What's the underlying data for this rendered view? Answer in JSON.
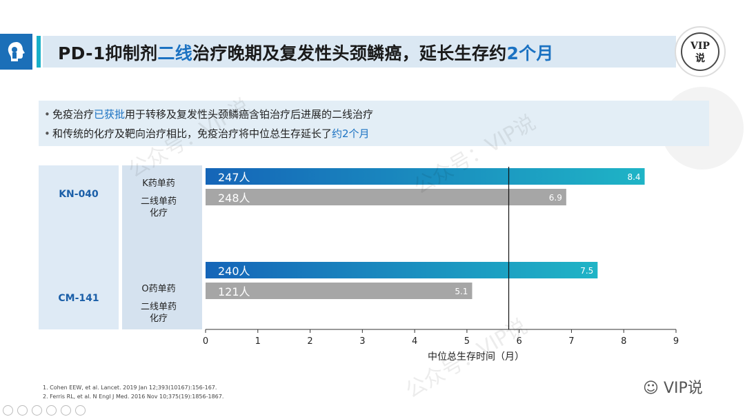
{
  "header": {
    "title_part1": "PD-1抑制剂",
    "title_highlight1": "二线",
    "title_part2": "治疗晚期及复发性头颈鳞癌，延长生存约",
    "title_highlight2": "2个月",
    "badge_line1": "VIP",
    "badge_line2": "说"
  },
  "bullets": [
    {
      "pre": "免疫治疗",
      "highlight": "已获批",
      "post": "用于转移及复发性头颈鳞癌含铂治疗后进展的二线治疗"
    },
    {
      "pre": "和传统的化疗及靶向治疗相比，免疫治疗将中位总生存延长了",
      "highlight": "约2个月",
      "post": ""
    }
  ],
  "chart_data": {
    "type": "bar",
    "orientation": "horizontal",
    "xlabel": "中位总生存时间（月）",
    "xlim": [
      0,
      9
    ],
    "xticks": [
      "0",
      "1",
      "2",
      "3",
      "4",
      "5",
      "6",
      "7",
      "8",
      "9"
    ],
    "reference_line": 5.8,
    "groups": [
      {
        "trial": "KN-040",
        "bars": [
          {
            "arm": "K药单药",
            "n_label": "247人",
            "value": 8.4,
            "value_label": "8.4",
            "kind": "immuno"
          },
          {
            "arm": "二线单药化疗",
            "n_label": "248人",
            "value": 6.9,
            "value_label": "6.9",
            "kind": "chemo"
          }
        ],
        "arm_labels": [
          "K药单药",
          "二线单药",
          "化疗"
        ]
      },
      {
        "trial": "CM-141",
        "bars": [
          {
            "arm": "O药单药",
            "n_label": "240人",
            "value": 7.5,
            "value_label": "7.5",
            "kind": "immuno"
          },
          {
            "arm": "二线单药化疗",
            "n_label": "121人",
            "value": 5.1,
            "value_label": "5.1",
            "kind": "chemo"
          }
        ],
        "arm_labels": [
          "O药单药",
          "二线单药",
          "化疗"
        ]
      }
    ],
    "colors": {
      "immuno_start": "#1565b8",
      "immuno_end": "#1fb4c6",
      "chemo": "#a6a6a6",
      "axis": "#333333"
    }
  },
  "footnotes": [
    "1. Cohen EEW, et al. Lancet. 2019 Jan 12;393(10167):156-167.",
    "2. Ferris RL, et al. N Engl J Med. 2016 Nov 10;375(19):1856-1867."
  ],
  "watermarks": [
    "公众号：VIP说",
    "公众号：VIP说",
    "公众号：VIP说"
  ],
  "wechat_label": "VIP说"
}
